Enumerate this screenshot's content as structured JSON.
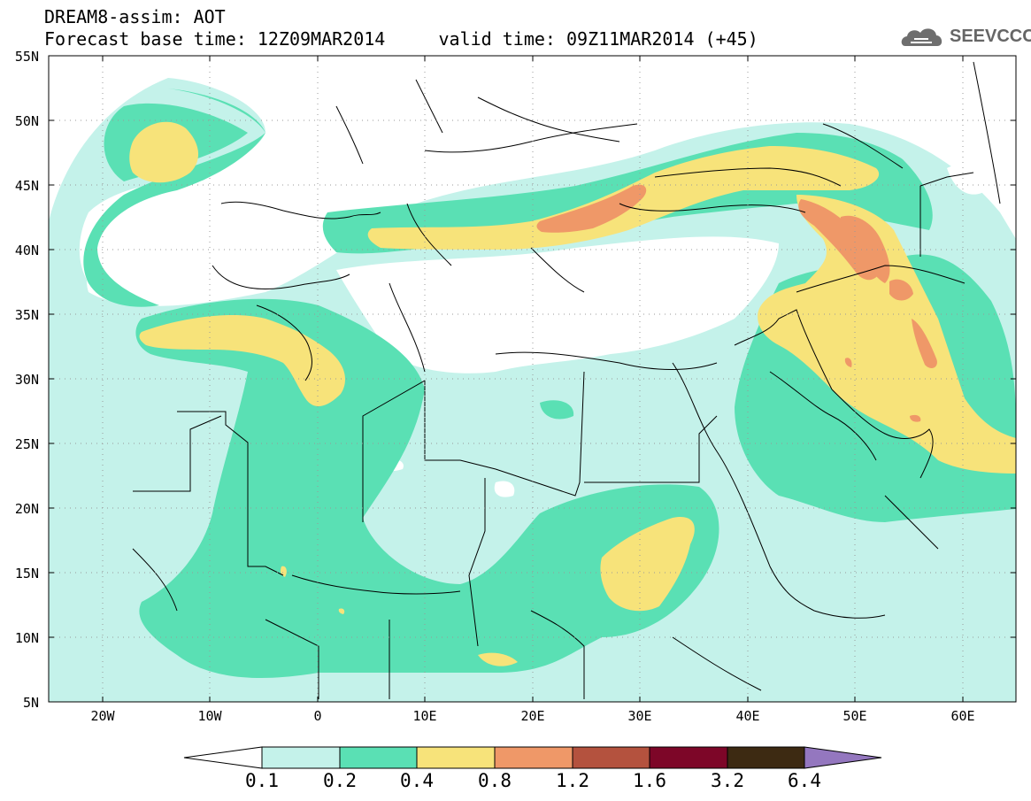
{
  "header": {
    "line1": "DREAM8-assim: AOT",
    "line2": "Forecast base time: 12Z09MAR2014     valid time: 09Z11MAR2014 (+45)"
  },
  "logo": {
    "text": "SEEVCCC",
    "icon": "cloud-icon"
  },
  "lat_labels": [
    "55N",
    "50N",
    "45N",
    "40N",
    "35N",
    "30N",
    "25N",
    "20N",
    "15N",
    "10N",
    "5N"
  ],
  "lon_labels": [
    "20W",
    "10W",
    "0",
    "10E",
    "20E",
    "30E",
    "40E",
    "50E",
    "60E"
  ],
  "colorbar": {
    "labels": [
      "0.1",
      "0.2",
      "0.4",
      "0.8",
      "1.2",
      "1.6",
      "3.2",
      "6.4"
    ],
    "colors": [
      "#c4f2ea",
      "#5ae0b4",
      "#f7e37a",
      "#ef9868",
      "#b4523e",
      "#7d0628",
      "#3d2a12",
      "#9477bf"
    ]
  },
  "colors": {
    "level1": "#c4f2ea",
    "level2": "#5ae0b4",
    "level3": "#f7e37a",
    "level4": "#ef9868",
    "land_border": "#000000",
    "grid": "#999999"
  }
}
